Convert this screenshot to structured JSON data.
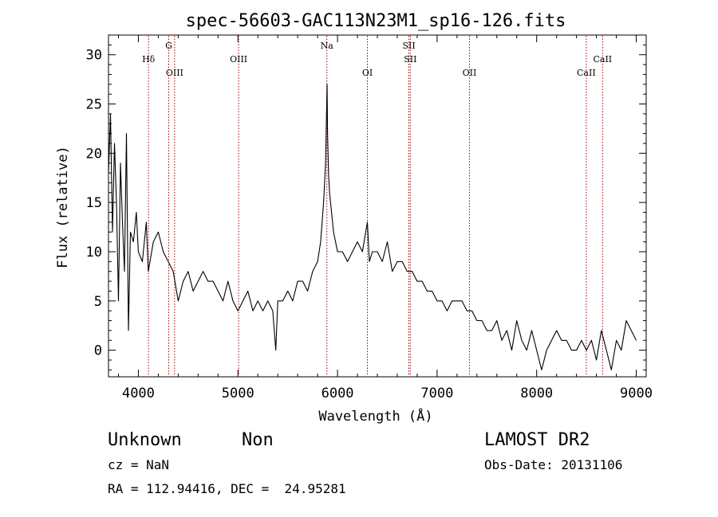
{
  "chart_data": {
    "type": "line",
    "title": "spec-56603-GAC113N23M1_sp16-126.fits",
    "xlabel": "Wavelength (Å)",
    "ylabel": "Flux (relative)",
    "xlim": [
      3700,
      9100
    ],
    "ylim": [
      -2.7,
      32
    ],
    "xticks": [
      4000,
      5000,
      6000,
      7000,
      8000,
      9000
    ],
    "yticks": [
      0,
      5,
      10,
      15,
      20,
      25,
      30
    ],
    "grid": false,
    "series": [
      {
        "x": [
          3700,
          3720,
          3740,
          3760,
          3780,
          3800,
          3820,
          3840,
          3860,
          3880,
          3900,
          3920,
          3950,
          3980,
          4000,
          4040,
          4080,
          4100,
          4150,
          4200,
          4250,
          4300,
          4350,
          4400,
          4450,
          4500,
          4550,
          4600,
          4650,
          4700,
          4750,
          4800,
          4850,
          4900,
          4950,
          5000,
          5050,
          5100,
          5150,
          5200,
          5250,
          5300,
          5350,
          5380,
          5400,
          5450,
          5500,
          5550,
          5600,
          5650,
          5700,
          5750,
          5800,
          5830,
          5860,
          5880,
          5895,
          5900,
          5910,
          5920,
          5940,
          5960,
          5980,
          6000,
          6050,
          6100,
          6150,
          6200,
          6250,
          6300,
          6320,
          6350,
          6400,
          6450,
          6500,
          6550,
          6600,
          6650,
          6700,
          6750,
          6800,
          6850,
          6900,
          6950,
          7000,
          7050,
          7100,
          7150,
          7200,
          7250,
          7300,
          7350,
          7400,
          7450,
          7500,
          7550,
          7600,
          7650,
          7700,
          7750,
          7800,
          7850,
          7900,
          7950,
          8000,
          8050,
          8100,
          8150,
          8200,
          8250,
          8300,
          8350,
          8400,
          8450,
          8500,
          8550,
          8600,
          8650,
          8700,
          8750,
          8800,
          8850,
          8900,
          8950,
          9000
        ],
        "y": [
          18,
          24,
          12,
          21,
          15,
          5,
          19,
          13,
          8,
          22,
          2,
          12,
          11,
          14,
          10,
          9,
          13,
          8,
          11,
          12,
          10,
          9,
          8,
          5,
          7,
          8,
          6,
          7,
          8,
          7,
          7,
          6,
          5,
          7,
          5,
          4,
          5,
          6,
          4,
          5,
          4,
          5,
          4,
          0,
          5,
          5,
          6,
          5,
          7,
          7,
          6,
          8,
          9,
          11,
          15,
          19,
          27,
          22,
          18,
          16,
          14,
          12,
          11,
          10,
          10,
          9,
          10,
          11,
          10,
          13,
          9,
          10,
          10,
          9,
          11,
          8,
          9,
          9,
          8,
          8,
          7,
          7,
          6,
          6,
          5,
          5,
          4,
          5,
          5,
          5,
          4,
          4,
          3,
          3,
          2,
          2,
          3,
          1,
          2,
          0,
          3,
          1,
          0,
          2,
          0,
          -2,
          0,
          1,
          2,
          1,
          1,
          0,
          0,
          1,
          0,
          1,
          -1,
          2,
          0,
          -2,
          1,
          0,
          3,
          2,
          1
        ]
      }
    ],
    "lines": [
      {
        "label": "Hδ",
        "x": 4102,
        "row": "upper"
      },
      {
        "label": "G",
        "x": 4305,
        "row": "top"
      },
      {
        "label": "OIII",
        "x": 4364,
        "row": "lower"
      },
      {
        "label": "OIII",
        "x": 5007,
        "row": "upper"
      },
      {
        "label": "Na",
        "x": 5893,
        "row": "top"
      },
      {
        "label": "OI",
        "x": 6300,
        "row": "lower"
      },
      {
        "label": "SII",
        "x": 6717,
        "row": "top"
      },
      {
        "label": "SII",
        "x": 6731,
        "row": "upper"
      },
      {
        "label": "OII",
        "x": 7325,
        "row": "lower"
      },
      {
        "label": "CaII",
        "x": 8498,
        "row": "lower"
      },
      {
        "label": "CaII",
        "x": 8662,
        "row": "upper"
      }
    ],
    "line_color": "#a00000"
  },
  "info": {
    "object_type": "Unknown",
    "subclass": "Non",
    "survey": "LAMOST DR2",
    "cz": "cz = NaN",
    "obs_date": "Obs-Date: 20131106",
    "coords": "RA = 112.94416, DEC =  24.95281"
  }
}
